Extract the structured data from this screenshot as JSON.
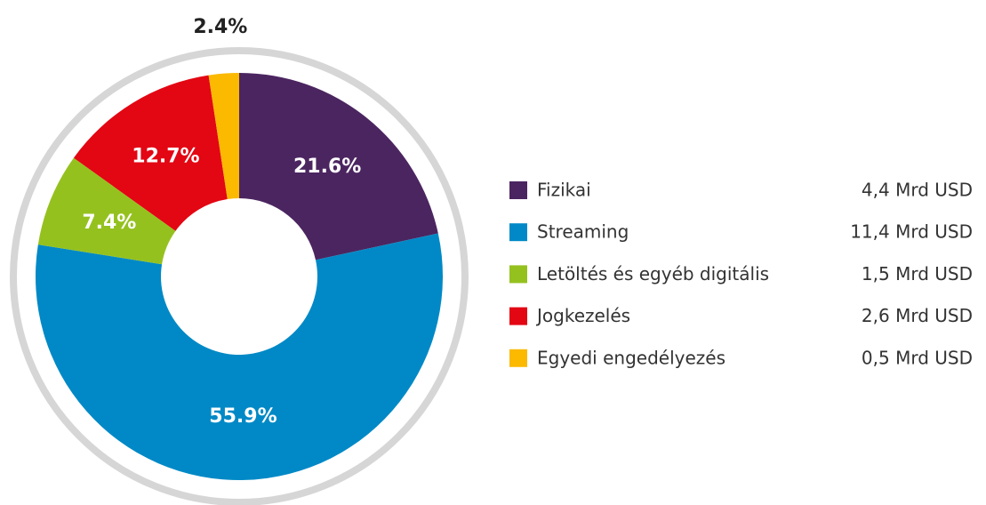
{
  "chart_data": {
    "type": "donut",
    "categories": [
      "Fizikai",
      "Streaming",
      "Letöltés és egyéb digitális",
      "Jogkezelés",
      "Egyedi engedélyezés"
    ],
    "values": [
      21.6,
      55.9,
      7.4,
      12.7,
      2.4
    ],
    "value_labels": [
      "21.6%",
      "55.9%",
      "7.4%",
      "12.7%",
      "2.4%"
    ],
    "colors": [
      "#4b2560",
      "#0089c6",
      "#95c11f",
      "#e30613",
      "#fbb900"
    ],
    "amounts": [
      4.4,
      11.4,
      1.5,
      2.6,
      0.5
    ],
    "amount_labels": [
      "4,4 Mrd USD",
      "11,4 Mrd USD",
      "1,5 Mrd USD",
      "2,6 Mrd USD",
      "0,5 Mrd USD"
    ]
  }
}
